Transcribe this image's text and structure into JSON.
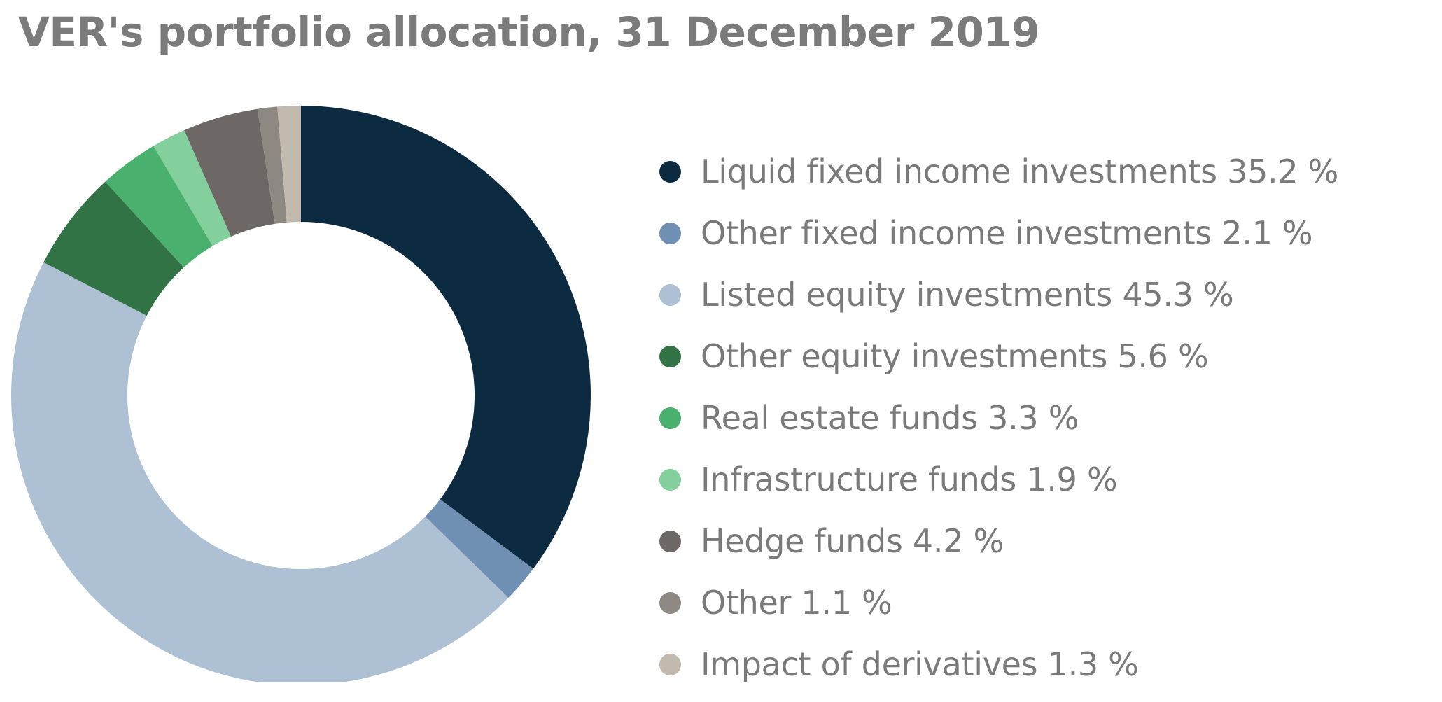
{
  "chart_data": {
    "type": "pie",
    "title": "VER's portfolio allocation, 31 December 2019",
    "legend_position": "right",
    "slices": [
      {
        "label": "Liquid fixed income investments 35.2 %",
        "value": 35.2,
        "color": "#0d2b40"
      },
      {
        "label": "Other fixed income investments 2.1 %",
        "value": 2.1,
        "color": "#6f90b3"
      },
      {
        "label": "Listed equity investments 45.3 %",
        "value": 45.3,
        "color": "#adc0d4"
      },
      {
        "label": "Other equity investments 5.6 %",
        "value": 5.6,
        "color": "#327346"
      },
      {
        "label": "Real estate funds 3.3 %",
        "value": 3.3,
        "color": "#49b06e"
      },
      {
        "label": "Infrastructure funds 1.9 %",
        "value": 1.9,
        "color": "#84d09c"
      },
      {
        "label": "Hedge funds 4.2 %",
        "value": 4.2,
        "color": "#6d6866"
      },
      {
        "label": "Other 1.1 %",
        "value": 1.1,
        "color": "#8e8882"
      },
      {
        "label": "Impact of derivatives 1.3 %",
        "value": 1.3,
        "color": "#c2baae"
      }
    ]
  }
}
